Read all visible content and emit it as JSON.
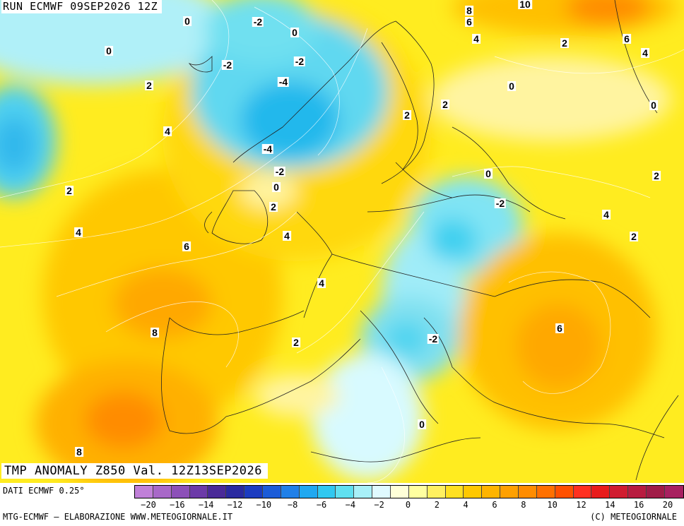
{
  "header": {
    "run_title": "RUN ECMWF 09SEP2026 12Z"
  },
  "map": {
    "field_title": "TMP ANOMALY Z850 Val. 12Z13SEP2026",
    "contour_labels": [
      "0",
      "-2",
      "0",
      "-2",
      "-2",
      "-4",
      "0",
      "2",
      "4",
      "2",
      "4",
      "-4",
      "-2",
      "0",
      "2",
      "4",
      "6",
      "4",
      "8",
      "2",
      "8",
      "2",
      "2",
      "0",
      "-2",
      "-2",
      "0",
      "6",
      "4",
      "8",
      "10",
      "6",
      "2",
      "6",
      "4",
      "0",
      "0",
      "2",
      "4",
      "2",
      "6"
    ]
  },
  "legend": {
    "data_source": "DATI ECMWF 0.25°",
    "ticks": [
      "-20",
      "-18",
      "-16",
      "-14",
      "-12",
      "-10",
      "-8",
      "-6",
      "-4",
      "-2",
      "0",
      "2",
      "4",
      "6",
      "8",
      "10",
      "12",
      "14",
      "16",
      "18",
      "20"
    ],
    "tick_labels": [
      "−20",
      "−16",
      "−14",
      "−12",
      "−10",
      "−8",
      "−6",
      "−4",
      "−2",
      "0",
      "2",
      "4",
      "6",
      "8",
      "10",
      "12",
      "14",
      "16",
      "20"
    ],
    "colors": [
      "#c080d8",
      "#a868c8",
      "#8c50b8",
      "#6c3aa8",
      "#4a2a98",
      "#2a2aa0",
      "#1c3cc0",
      "#1c5cd8",
      "#2080e8",
      "#20a8f0",
      "#30c8f0",
      "#60e0f0",
      "#a8f0f8",
      "#e0faff",
      "#ffffd8",
      "#ffffa0",
      "#fff060",
      "#ffe020",
      "#ffc800",
      "#ffb400",
      "#ffa000",
      "#ff8c00",
      "#ff7000",
      "#ff5000",
      "#ff3020",
      "#e81c1c",
      "#d01c30",
      "#b81c40",
      "#a01c48",
      "#a82060"
    ],
    "credit_left": "MTG-ECMWF – ELABORAZIONE WWW.METEOGIORNALE.IT",
    "credit_right": "(C) METEOGIORNALE"
  }
}
